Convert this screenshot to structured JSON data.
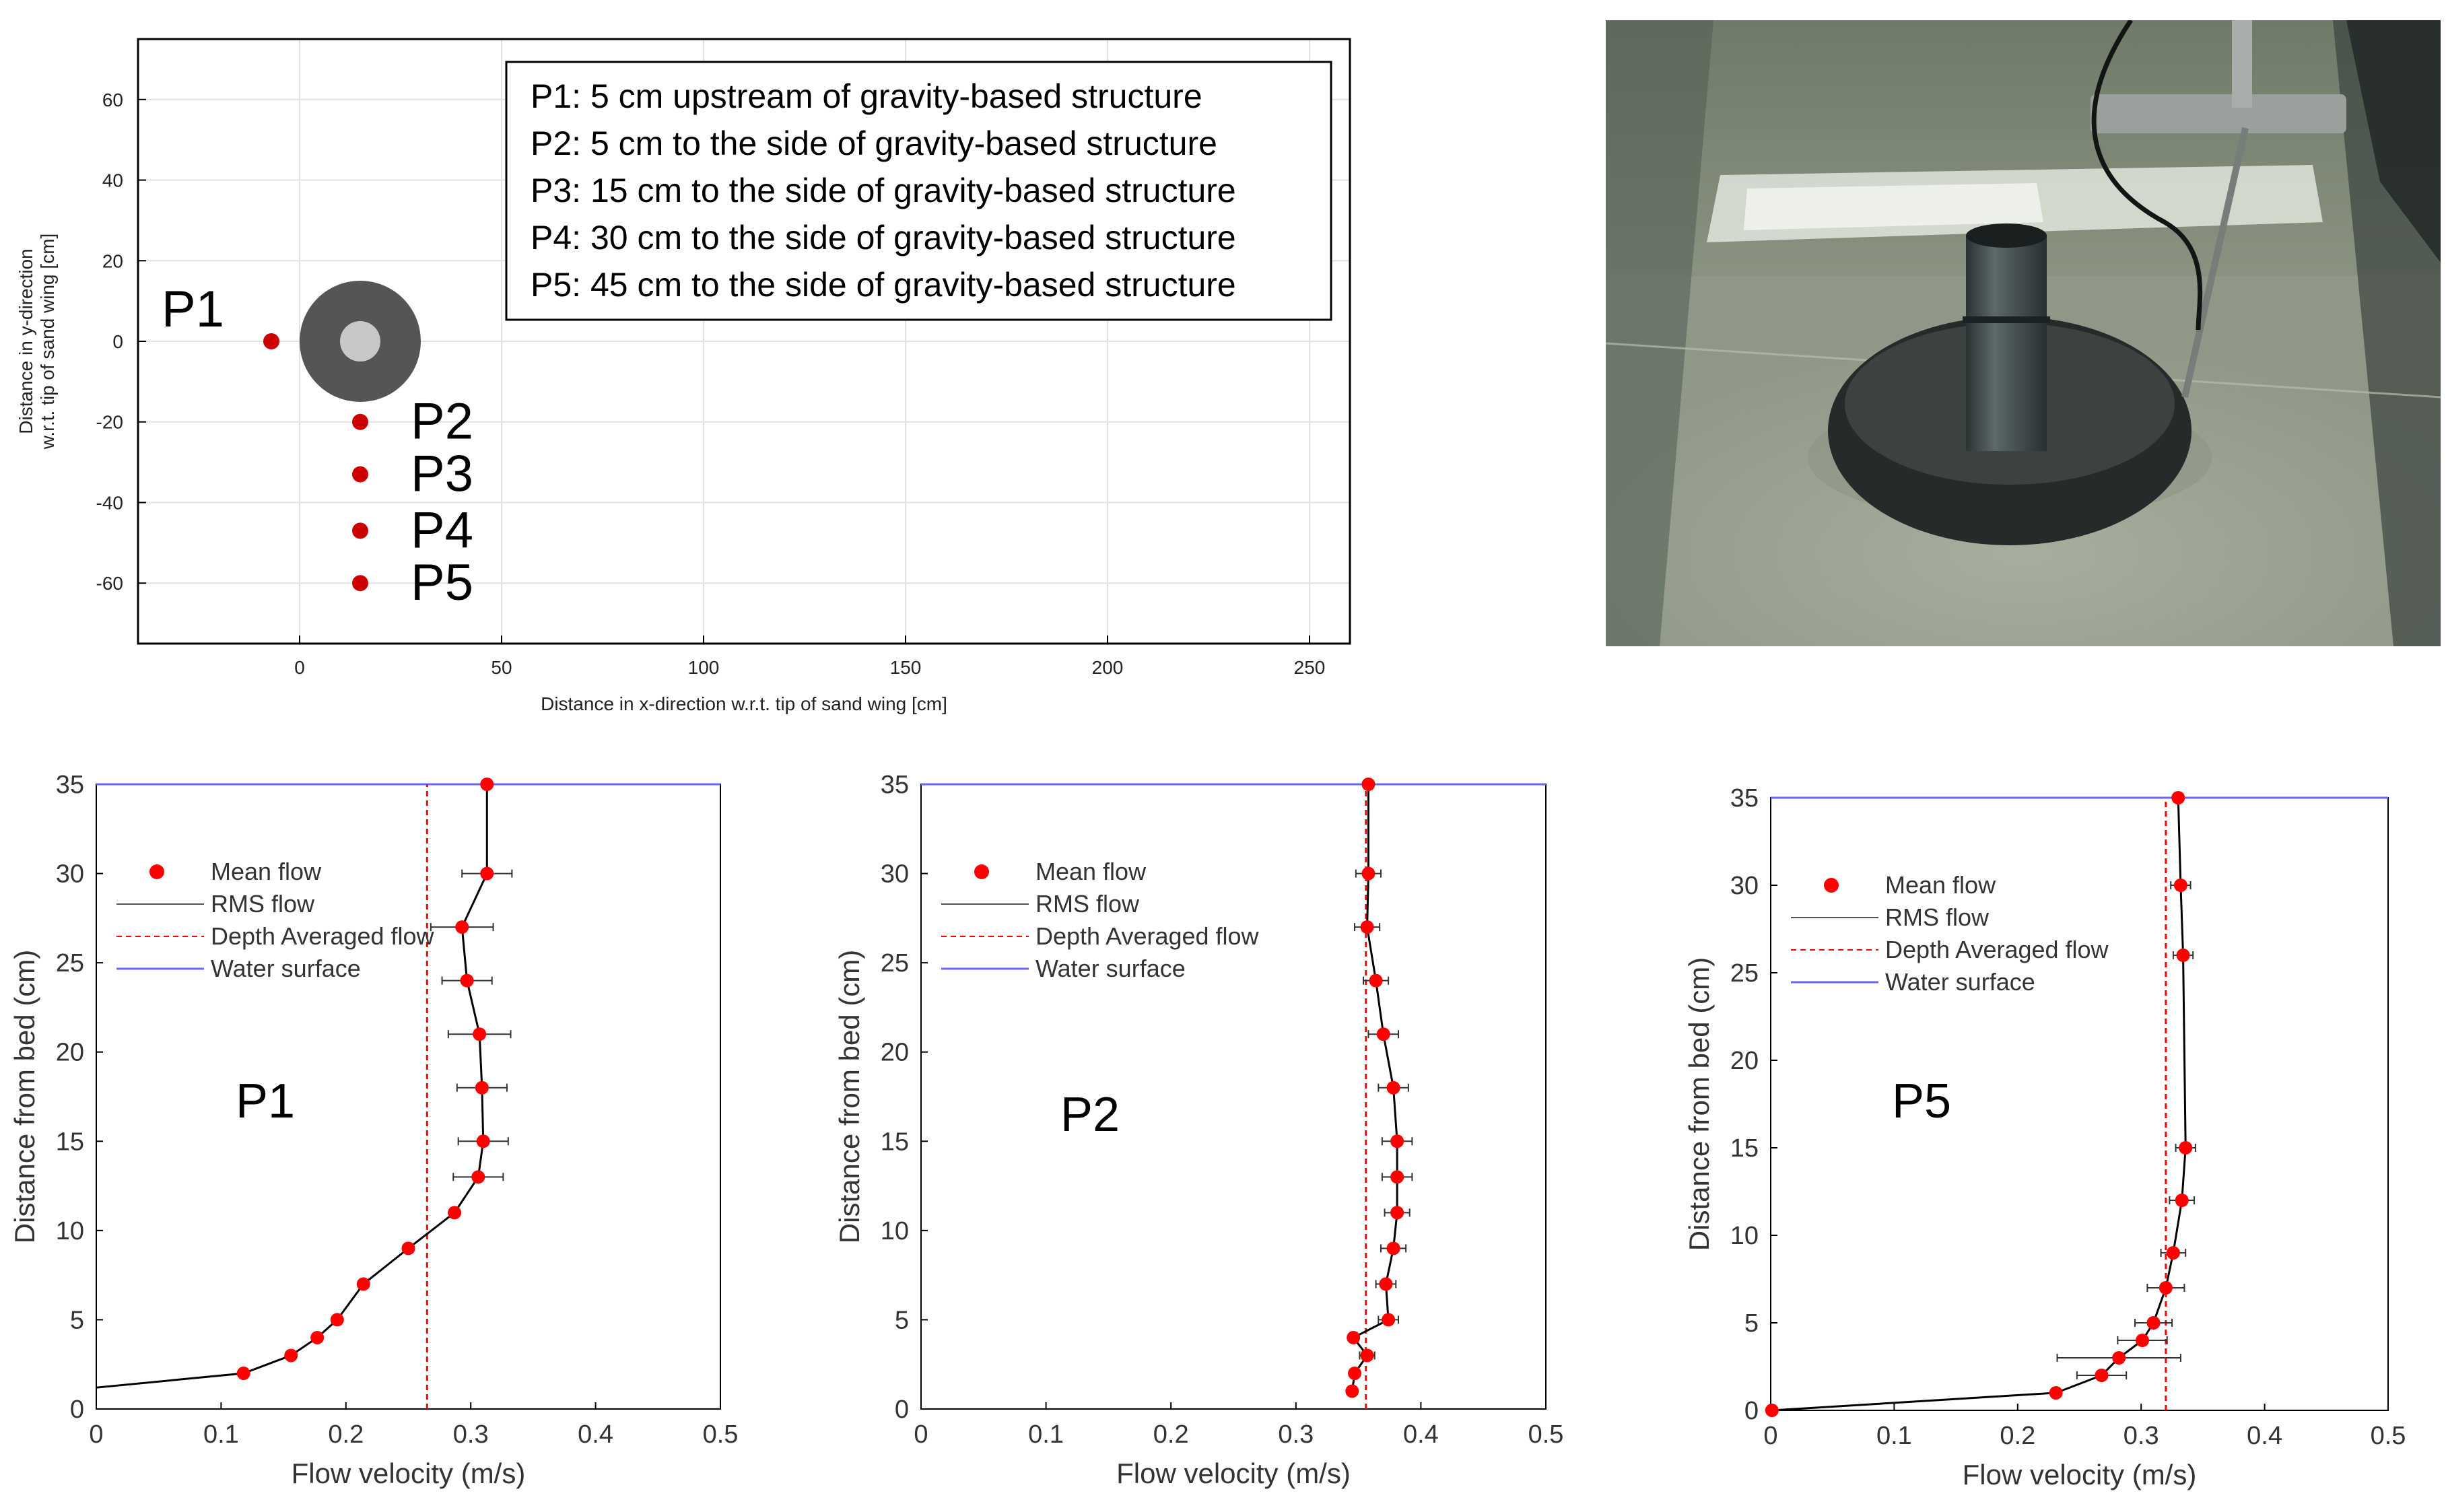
{
  "chart_data": [
    {
      "type": "scatter",
      "xlabel": "Distance in x-direction w.r.t. tip of sand wing [cm]",
      "ylabel": "Distance in y-direction w.r.t. tip of sand wing [cm]",
      "xlim": [
        -40,
        260
      ],
      "ylim": [
        -75,
        75
      ],
      "xticks": [
        0,
        50,
        100,
        150,
        200,
        250
      ],
      "yticks": [
        -60,
        -40,
        -20,
        0,
        20,
        40,
        60
      ],
      "grid": true,
      "legend": "top-right",
      "structure": {
        "x": 15,
        "y": 0,
        "outer_radius": 15,
        "inner_radius": 5,
        "outer_color": "#555555",
        "inner_color": "#c8c8c8"
      },
      "points": [
        {
          "label": "P1",
          "x": -7,
          "y": 0
        },
        {
          "label": "P2",
          "x": 15,
          "y": -20
        },
        {
          "label": "P3",
          "x": 15,
          "y": -33
        },
        {
          "label": "P4",
          "x": 15,
          "y": -47
        },
        {
          "label": "P5",
          "x": 15,
          "y": -60
        }
      ],
      "point_color": "#cc0000",
      "legend_entries": [
        "P1: 5 cm upstream of gravity-based structure",
        "P2: 5 cm to the side of gravity-based structure",
        "P3: 15 cm to the side of gravity-based structure",
        "P4: 30 cm to the side of gravity-based structure",
        "P5: 45 cm to the side of gravity-based structure"
      ]
    },
    {
      "type": "line",
      "label": "P1",
      "xlabel": "Flow velocity (m/s)",
      "ylabel": "Distance from bed (cm)",
      "xlim": [
        0,
        0.5
      ],
      "ylim": [
        0,
        35
      ],
      "xticks": [
        0,
        0.1,
        0.2,
        0.3,
        0.4,
        0.5
      ],
      "yticks": [
        0,
        5,
        10,
        15,
        20,
        25,
        30,
        35
      ],
      "legend": [
        "Mean flow",
        "RMS flow",
        "Depth Averaged flow",
        "Water surface"
      ],
      "legend_placement": "top-left",
      "colors": {
        "mean": "#ff0000",
        "rms": "#000000",
        "depth_avg": "#ff0000",
        "surface": "#6666ff"
      },
      "series": {
        "mean": [
          {
            "x": 0.118,
            "y": 2,
            "e": 0
          },
          {
            "x": 0.156,
            "y": 3,
            "e": 0
          },
          {
            "x": 0.177,
            "y": 4,
            "e": 0
          },
          {
            "x": 0.193,
            "y": 5,
            "e": 0
          },
          {
            "x": 0.214,
            "y": 7,
            "e": 0
          },
          {
            "x": 0.25,
            "y": 9,
            "e": 0
          },
          {
            "x": 0.287,
            "y": 11,
            "e": 0
          },
          {
            "x": 0.306,
            "y": 13,
            "e": 0.02
          },
          {
            "x": 0.31,
            "y": 15,
            "e": 0.02
          },
          {
            "x": 0.309,
            "y": 18,
            "e": 0.02
          },
          {
            "x": 0.307,
            "y": 21,
            "e": 0.025
          },
          {
            "x": 0.297,
            "y": 24,
            "e": 0.02
          },
          {
            "x": 0.293,
            "y": 27,
            "e": 0.025
          },
          {
            "x": 0.313,
            "y": 30,
            "e": 0.02
          },
          {
            "x": 0.313,
            "y": 35,
            "e": 0
          }
        ],
        "line_extension": [
          {
            "x": 0,
            "y": 1.2
          }
        ],
        "depth_averaged": 0.265,
        "water_surface": 35
      }
    },
    {
      "type": "line",
      "label": "P2",
      "xlabel": "Flow velocity (m/s)",
      "ylabel": "Distance from bed (cm)",
      "xlim": [
        0,
        0.5
      ],
      "ylim": [
        0,
        35
      ],
      "xticks": [
        0,
        0.1,
        0.2,
        0.3,
        0.4,
        0.5
      ],
      "yticks": [
        0,
        5,
        10,
        15,
        20,
        25,
        30,
        35
      ],
      "legend": [
        "Mean flow",
        "RMS flow",
        "Depth Averaged flow",
        "Water surface"
      ],
      "legend_placement": "top-left",
      "colors": {
        "mean": "#ff0000",
        "rms": "#000000",
        "depth_avg": "#ff0000",
        "surface": "#6666ff"
      },
      "series": {
        "mean": [
          {
            "x": 0.345,
            "y": 1,
            "e": 0
          },
          {
            "x": 0.347,
            "y": 2,
            "e": 0
          },
          {
            "x": 0.357,
            "y": 3,
            "e": 0.006
          },
          {
            "x": 0.346,
            "y": 4,
            "e": 0
          },
          {
            "x": 0.374,
            "y": 5,
            "e": 0.008
          },
          {
            "x": 0.372,
            "y": 7,
            "e": 0.008
          },
          {
            "x": 0.378,
            "y": 9,
            "e": 0.01
          },
          {
            "x": 0.381,
            "y": 11,
            "e": 0.01
          },
          {
            "x": 0.381,
            "y": 13,
            "e": 0.012
          },
          {
            "x": 0.381,
            "y": 15,
            "e": 0.012
          },
          {
            "x": 0.378,
            "y": 18,
            "e": 0.012
          },
          {
            "x": 0.37,
            "y": 21,
            "e": 0.012
          },
          {
            "x": 0.364,
            "y": 24,
            "e": 0.01
          },
          {
            "x": 0.357,
            "y": 27,
            "e": 0.01
          },
          {
            "x": 0.358,
            "y": 30,
            "e": 0.01
          },
          {
            "x": 0.358,
            "y": 35,
            "e": 0
          }
        ],
        "line_extension": [],
        "depth_averaged": 0.356,
        "water_surface": 35
      }
    },
    {
      "type": "line",
      "label": "P5",
      "xlabel": "Flow velocity (m/s)",
      "ylabel": "Distance from bed (cm)",
      "xlim": [
        0,
        0.5
      ],
      "ylim": [
        0,
        35
      ],
      "xticks": [
        0,
        0.1,
        0.2,
        0.3,
        0.4,
        0.5
      ],
      "yticks": [
        0,
        5,
        10,
        15,
        20,
        25,
        30,
        35
      ],
      "legend": [
        "Mean flow",
        "RMS flow",
        "Depth Averaged flow",
        "Water surface"
      ],
      "legend_placement": "top-left",
      "colors": {
        "mean": "#ff0000",
        "rms": "#000000",
        "depth_avg": "#ff0000",
        "surface": "#6666ff"
      },
      "series": {
        "mean": [
          {
            "x": 0.001,
            "y": 0,
            "e": 0
          },
          {
            "x": 0.231,
            "y": 1,
            "e": 0
          },
          {
            "x": 0.268,
            "y": 2,
            "e": 0.02
          },
          {
            "x": 0.282,
            "y": 3,
            "e": 0.05
          },
          {
            "x": 0.301,
            "y": 4,
            "e": 0.02
          },
          {
            "x": 0.31,
            "y": 5,
            "e": 0.015
          },
          {
            "x": 0.32,
            "y": 7,
            "e": 0.015
          },
          {
            "x": 0.326,
            "y": 9,
            "e": 0.01
          },
          {
            "x": 0.333,
            "y": 12,
            "e": 0.01
          },
          {
            "x": 0.336,
            "y": 15,
            "e": 0.008
          },
          {
            "x": 0.334,
            "y": 26,
            "e": 0.008
          },
          {
            "x": 0.332,
            "y": 30,
            "e": 0.008
          },
          {
            "x": 0.33,
            "y": 35,
            "e": 0
          }
        ],
        "line_extension": [],
        "depth_averaged": 0.32,
        "water_surface": 35
      }
    }
  ]
}
